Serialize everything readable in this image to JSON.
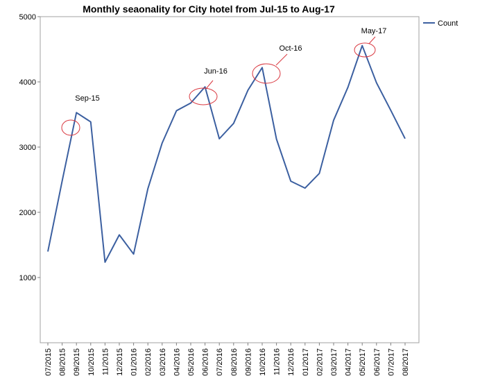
{
  "chart_data": {
    "type": "line",
    "title": "Monthly seaonality for City hotel from Jul-15 to Aug-17",
    "xlabel": "",
    "ylabel": "",
    "ylim": [
      0,
      5000
    ],
    "yticks": [
      1000,
      2000,
      3000,
      4000,
      5000
    ],
    "grid": false,
    "legend_position": "top-right",
    "categories": [
      "07/2015",
      "08/2015",
      "09/2015",
      "10/2015",
      "11/2015",
      "12/2015",
      "01/2016",
      "02/2016",
      "03/2016",
      "04/2016",
      "05/2016",
      "06/2016",
      "07/2016",
      "08/2016",
      "09/2016",
      "10/2016",
      "11/2016",
      "12/2016",
      "01/2017",
      "02/2017",
      "03/2017",
      "04/2017",
      "05/2017",
      "06/2017",
      "07/2017",
      "08/2017"
    ],
    "series": [
      {
        "name": "Count",
        "color": "#3b5fa0",
        "values": [
          1398,
          2480,
          3529,
          3386,
          1235,
          1654,
          1360,
          2363,
          3063,
          3557,
          3676,
          3923,
          3128,
          3364,
          3871,
          4219,
          3122,
          2478,
          2371,
          2597,
          3412,
          3917,
          4556,
          3986,
          3563,
          3130
        ]
      }
    ],
    "annotations": [
      {
        "label": "Sep-15",
        "category": "09/2015",
        "color": "#d9363e"
      },
      {
        "label": "Jun-16",
        "category": "06/2016",
        "color": "#d9363e"
      },
      {
        "label": "Oct-16",
        "category": "10/2016",
        "color": "#d9363e"
      },
      {
        "label": "May-17",
        "category": "05/2017",
        "color": "#d9363e"
      }
    ]
  }
}
